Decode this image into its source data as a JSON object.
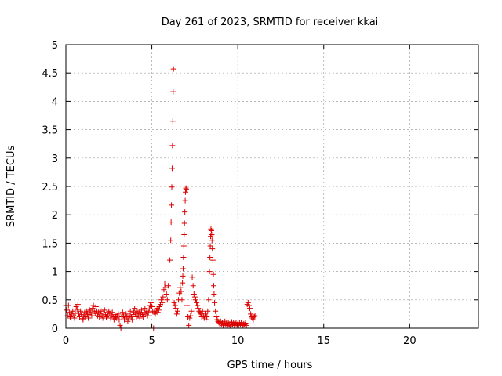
{
  "chart_data": {
    "type": "scatter",
    "title": "Day 261 of 2023, SRMTID for receiver kkai",
    "xlabel": "GPS time / hours",
    "ylabel": "SRMTID / TECUs",
    "xlim": [
      0,
      24
    ],
    "ylim": [
      0,
      5
    ],
    "xticks": [
      0,
      5,
      10,
      15,
      20
    ],
    "yticks": [
      0,
      0.5,
      1,
      1.5,
      2,
      2.5,
      3,
      3.5,
      4,
      4.5,
      5
    ],
    "xtick_labels": [
      "0",
      "5",
      "10",
      "15",
      "20"
    ],
    "ytick_labels": [
      "0",
      "0.5",
      "1",
      "1.5",
      "2",
      "2.5",
      "3",
      "3.5",
      "4",
      "4.5",
      "5"
    ],
    "grid": true,
    "marker": "+",
    "color": "#dd0000",
    "series": [
      {
        "name": "SRMTID",
        "points": [
          [
            0.0,
            0.4
          ],
          [
            0.05,
            0.32
          ],
          [
            0.1,
            0.22
          ],
          [
            0.15,
            0.4
          ],
          [
            0.2,
            0.28
          ],
          [
            0.25,
            0.2
          ],
          [
            0.3,
            0.18
          ],
          [
            0.35,
            0.25
          ],
          [
            0.4,
            0.3
          ],
          [
            0.45,
            0.22
          ],
          [
            0.5,
            0.18
          ],
          [
            0.55,
            0.27
          ],
          [
            0.6,
            0.38
          ],
          [
            0.65,
            0.33
          ],
          [
            0.7,
            0.42
          ],
          [
            0.75,
            0.26
          ],
          [
            0.8,
            0.2
          ],
          [
            0.85,
            0.3
          ],
          [
            0.9,
            0.24
          ],
          [
            0.95,
            0.17
          ],
          [
            1.0,
            0.15
          ],
          [
            1.05,
            0.22
          ],
          [
            1.1,
            0.28
          ],
          [
            1.15,
            0.2
          ],
          [
            1.2,
            0.3
          ],
          [
            1.25,
            0.25
          ],
          [
            1.3,
            0.18
          ],
          [
            1.35,
            0.24
          ],
          [
            1.4,
            0.32
          ],
          [
            1.45,
            0.28
          ],
          [
            1.5,
            0.22
          ],
          [
            1.55,
            0.35
          ],
          [
            1.6,
            0.4
          ],
          [
            1.65,
            0.3
          ],
          [
            1.7,
            0.26
          ],
          [
            1.75,
            0.38
          ],
          [
            1.8,
            0.3
          ],
          [
            1.85,
            0.22
          ],
          [
            1.9,
            0.28
          ],
          [
            1.95,
            0.2
          ],
          [
            2.0,
            0.25
          ],
          [
            2.05,
            0.3
          ],
          [
            2.1,
            0.22
          ],
          [
            2.15,
            0.18
          ],
          [
            2.2,
            0.27
          ],
          [
            2.25,
            0.32
          ],
          [
            2.3,
            0.24
          ],
          [
            2.35,
            0.2
          ],
          [
            2.4,
            0.28
          ],
          [
            2.45,
            0.22
          ],
          [
            2.5,
            0.3
          ],
          [
            2.55,
            0.25
          ],
          [
            2.6,
            0.18
          ],
          [
            2.65,
            0.22
          ],
          [
            2.7,
            0.28
          ],
          [
            2.75,
            0.2
          ],
          [
            2.8,
            0.15
          ],
          [
            2.85,
            0.24
          ],
          [
            2.9,
            0.2
          ],
          [
            2.95,
            0.18
          ],
          [
            3.0,
            0.22
          ],
          [
            3.05,
            0.25
          ],
          [
            3.1,
            0.15
          ],
          [
            3.15,
            0.05
          ],
          [
            3.2,
            0.0
          ],
          [
            3.25,
            0.2
          ],
          [
            3.3,
            0.28
          ],
          [
            3.35,
            0.22
          ],
          [
            3.4,
            0.15
          ],
          [
            3.45,
            0.18
          ],
          [
            3.5,
            0.25
          ],
          [
            3.55,
            0.2
          ],
          [
            3.6,
            0.12
          ],
          [
            3.65,
            0.18
          ],
          [
            3.7,
            0.22
          ],
          [
            3.75,
            0.3
          ],
          [
            3.8,
            0.2
          ],
          [
            3.85,
            0.15
          ],
          [
            3.9,
            0.24
          ],
          [
            3.95,
            0.28
          ],
          [
            4.0,
            0.35
          ],
          [
            4.05,
            0.25
          ],
          [
            4.1,
            0.2
          ],
          [
            4.15,
            0.3
          ],
          [
            4.2,
            0.22
          ],
          [
            4.25,
            0.28
          ],
          [
            4.3,
            0.18
          ],
          [
            4.35,
            0.25
          ],
          [
            4.4,
            0.32
          ],
          [
            4.45,
            0.24
          ],
          [
            4.5,
            0.2
          ],
          [
            4.55,
            0.28
          ],
          [
            4.6,
            0.35
          ],
          [
            4.65,
            0.25
          ],
          [
            4.7,
            0.3
          ],
          [
            4.75,
            0.22
          ],
          [
            4.8,
            0.28
          ],
          [
            4.85,
            0.34
          ],
          [
            4.9,
            0.4
          ],
          [
            4.95,
            0.45
          ],
          [
            5.0,
            0.38
          ],
          [
            5.05,
            0.3
          ],
          [
            5.1,
            0.0
          ],
          [
            5.15,
            0.28
          ],
          [
            5.2,
            0.25
          ],
          [
            5.25,
            0.3
          ],
          [
            5.3,
            0.35
          ],
          [
            5.35,
            0.28
          ],
          [
            5.4,
            0.32
          ],
          [
            5.45,
            0.38
          ],
          [
            5.5,
            0.42
          ],
          [
            5.55,
            0.5
          ],
          [
            5.6,
            0.45
          ],
          [
            5.65,
            0.55
          ],
          [
            5.7,
            0.68
          ],
          [
            5.75,
            0.78
          ],
          [
            5.8,
            0.72
          ],
          [
            5.85,
            0.6
          ],
          [
            5.9,
            0.5
          ],
          [
            5.95,
            0.75
          ],
          [
            6.0,
            0.85
          ],
          [
            6.05,
            1.2
          ],
          [
            6.1,
            1.55
          ],
          [
            6.12,
            1.87
          ],
          [
            6.14,
            2.17
          ],
          [
            6.16,
            2.49
          ],
          [
            6.18,
            2.82
          ],
          [
            6.2,
            3.22
          ],
          [
            6.22,
            3.65
          ],
          [
            6.24,
            4.17
          ],
          [
            6.26,
            4.57
          ],
          [
            6.3,
            0.45
          ],
          [
            6.35,
            0.4
          ],
          [
            6.4,
            0.35
          ],
          [
            6.45,
            0.25
          ],
          [
            6.5,
            0.3
          ],
          [
            6.55,
            0.5
          ],
          [
            6.6,
            0.62
          ],
          [
            6.65,
            0.72
          ],
          [
            6.7,
            0.65
          ],
          [
            6.75,
            0.5
          ],
          [
            6.78,
            0.8
          ],
          [
            6.8,
            0.92
          ],
          [
            6.82,
            1.05
          ],
          [
            6.84,
            1.25
          ],
          [
            6.86,
            1.45
          ],
          [
            6.88,
            1.65
          ],
          [
            6.9,
            1.85
          ],
          [
            6.92,
            2.05
          ],
          [
            6.94,
            2.25
          ],
          [
            6.96,
            2.4
          ],
          [
            6.98,
            2.47
          ],
          [
            7.0,
            2.45
          ],
          [
            7.05,
            0.4
          ],
          [
            7.1,
            0.2
          ],
          [
            7.15,
            0.05
          ],
          [
            7.2,
            0.18
          ],
          [
            7.25,
            0.22
          ],
          [
            7.3,
            0.3
          ],
          [
            7.35,
            0.9
          ],
          [
            7.4,
            0.75
          ],
          [
            7.45,
            0.6
          ],
          [
            7.5,
            0.55
          ],
          [
            7.55,
            0.5
          ],
          [
            7.6,
            0.45
          ],
          [
            7.65,
            0.4
          ],
          [
            7.7,
            0.35
          ],
          [
            7.75,
            0.3
          ],
          [
            7.8,
            0.28
          ],
          [
            7.85,
            0.25
          ],
          [
            7.9,
            0.2
          ],
          [
            7.95,
            0.3
          ],
          [
            8.0,
            0.22
          ],
          [
            8.05,
            0.18
          ],
          [
            8.1,
            0.25
          ],
          [
            8.15,
            0.15
          ],
          [
            8.2,
            0.2
          ],
          [
            8.25,
            0.3
          ],
          [
            8.3,
            0.5
          ],
          [
            8.35,
            1.0
          ],
          [
            8.38,
            1.25
          ],
          [
            8.4,
            1.45
          ],
          [
            8.42,
            1.62
          ],
          [
            8.44,
            1.75
          ],
          [
            8.46,
            1.72
          ],
          [
            8.48,
            1.65
          ],
          [
            8.5,
            1.55
          ],
          [
            8.52,
            1.4
          ],
          [
            8.55,
            1.2
          ],
          [
            8.58,
            0.95
          ],
          [
            8.6,
            0.75
          ],
          [
            8.62,
            0.6
          ],
          [
            8.65,
            0.45
          ],
          [
            8.7,
            0.3
          ],
          [
            8.75,
            0.2
          ],
          [
            8.8,
            0.15
          ],
          [
            8.85,
            0.12
          ],
          [
            8.9,
            0.1
          ],
          [
            8.95,
            0.08
          ],
          [
            9.0,
            0.12
          ],
          [
            9.05,
            0.07
          ],
          [
            9.1,
            0.1
          ],
          [
            9.15,
            0.05
          ],
          [
            9.2,
            0.08
          ],
          [
            9.25,
            0.12
          ],
          [
            9.3,
            0.06
          ],
          [
            9.35,
            0.09
          ],
          [
            9.4,
            0.05
          ],
          [
            9.45,
            0.1
          ],
          [
            9.5,
            0.07
          ],
          [
            9.55,
            0.04
          ],
          [
            9.6,
            0.08
          ],
          [
            9.65,
            0.11
          ],
          [
            9.7,
            0.06
          ],
          [
            9.75,
            0.09
          ],
          [
            9.8,
            0.05
          ],
          [
            9.85,
            0.07
          ],
          [
            9.9,
            0.1
          ],
          [
            9.95,
            0.06
          ],
          [
            10.0,
            0.08
          ],
          [
            10.05,
            0.05
          ],
          [
            10.1,
            0.09
          ],
          [
            10.15,
            0.06
          ],
          [
            10.2,
            0.1
          ],
          [
            10.25,
            0.07
          ],
          [
            10.3,
            0.05
          ],
          [
            10.35,
            0.08
          ],
          [
            10.4,
            0.06
          ],
          [
            10.45,
            0.09
          ],
          [
            10.5,
            0.05
          ],
          [
            10.55,
            0.42
          ],
          [
            10.6,
            0.45
          ],
          [
            10.65,
            0.4
          ],
          [
            10.7,
            0.35
          ],
          [
            10.75,
            0.25
          ],
          [
            10.8,
            0.2
          ],
          [
            10.85,
            0.18
          ],
          [
            10.9,
            0.15
          ],
          [
            10.95,
            0.2
          ],
          [
            11.0,
            0.22
          ]
        ]
      }
    ]
  }
}
